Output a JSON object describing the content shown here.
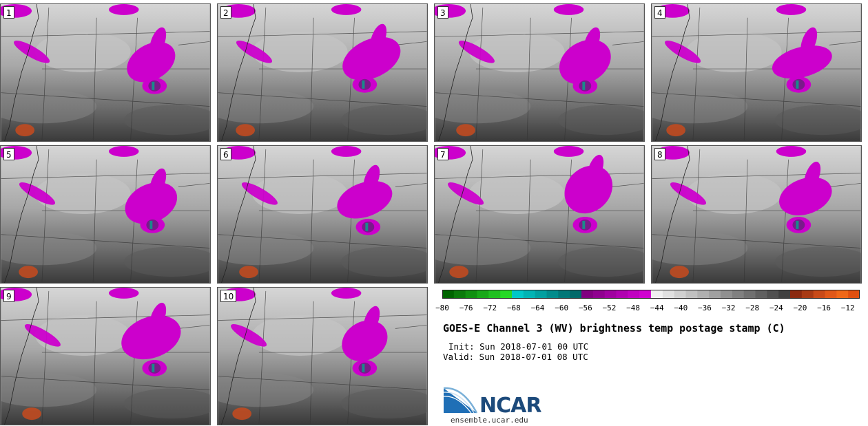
{
  "panels": [
    {
      "label": "1"
    },
    {
      "label": "2"
    },
    {
      "label": "3"
    },
    {
      "label": "4"
    },
    {
      "label": "5"
    },
    {
      "label": "6"
    },
    {
      "label": "7"
    },
    {
      "label": "8"
    },
    {
      "label": "9"
    },
    {
      "label": "10"
    }
  ],
  "colorbar": {
    "ticks": [
      "−80",
      "−76",
      "−72",
      "−68",
      "−64",
      "−60",
      "−56",
      "−52",
      "−48",
      "−44",
      "−40",
      "−36",
      "−32",
      "−28",
      "−24",
      "−20",
      "−16",
      "−12"
    ],
    "min": -80,
    "max": -10,
    "step": 2,
    "colors": [
      "#006400",
      "#0a7a0a",
      "#109010",
      "#18a818",
      "#20c020",
      "#26d826",
      "#00c8c8",
      "#00b4b4",
      "#00a0a0",
      "#008c8c",
      "#007878",
      "#006a6a",
      "#800080",
      "#8f008f",
      "#a000a0",
      "#b000b0",
      "#c000c0",
      "#d000d0",
      "#f0f0f0",
      "#e0e0e0",
      "#d0d0d0",
      "#c0c0c0",
      "#b0b0b0",
      "#a0a0a0",
      "#909090",
      "#808080",
      "#707070",
      "#606060",
      "#505050",
      "#404040",
      "#8b2a10",
      "#a83a14",
      "#c84a18",
      "#e05818",
      "#f06818",
      "#e05010"
    ]
  },
  "title": "GOES-E Channel 3 (WV) brightness temp postage stamp (C)",
  "init": "Init: Sun 2018-07-01 00 UTC",
  "valid": "Valid: Sun 2018-07-01 08 UTC",
  "logo": {
    "text": "NCAR",
    "site": "ensemble.ucar.edu"
  },
  "map_colors": {
    "magenta": "#cc00cc",
    "purple_dark": "#7a1a8a",
    "teal": "#1a8a8a",
    "orange": "#c04a20"
  }
}
